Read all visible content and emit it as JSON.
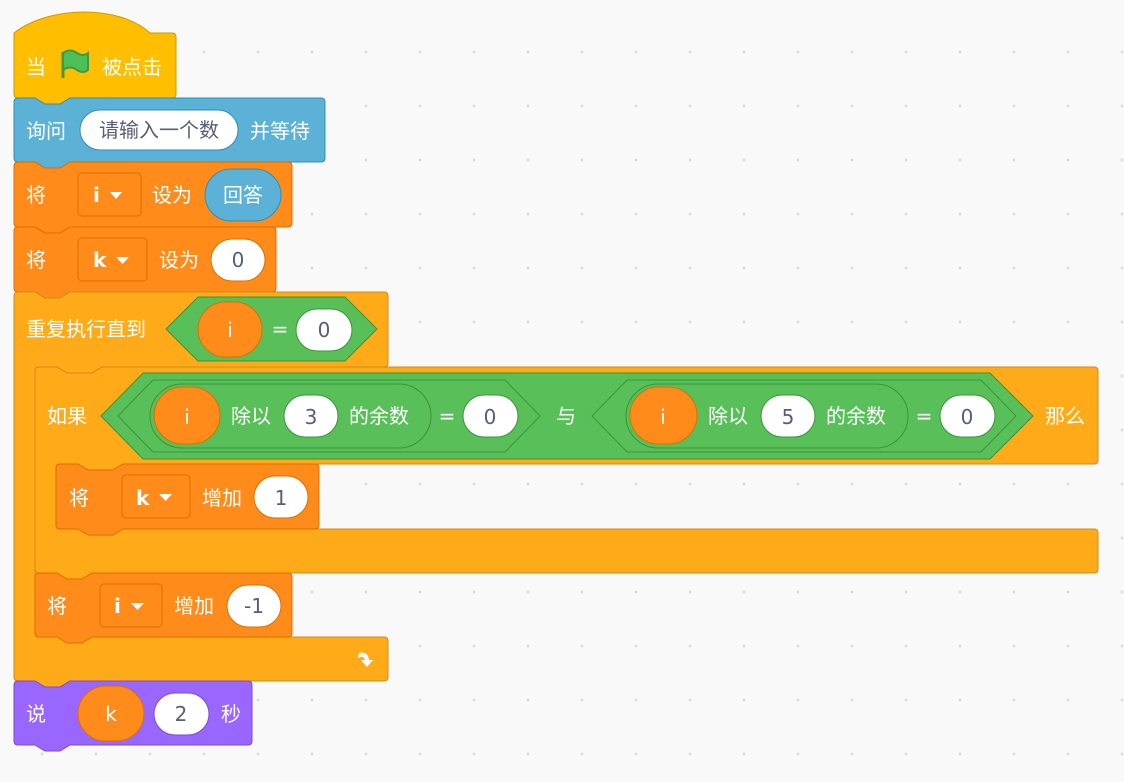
{
  "colors": {
    "events": "#ffbf00",
    "sensing": "#5cb1d6",
    "variables": "#ff8c1a",
    "control": "#ffab19",
    "operators": "#59c059",
    "looks": "#9966ff"
  },
  "script": {
    "hat": {
      "prefix": "当",
      "icon": "green-flag-icon",
      "suffix": "被点击"
    },
    "ask": {
      "label": "询问",
      "prompt": "请输入一个数",
      "suffix": "并等待"
    },
    "set_i": {
      "label": "将",
      "variable": "i",
      "mid": "设为",
      "reporter": "回答"
    },
    "set_k": {
      "label": "将",
      "variable": "k",
      "mid": "设为",
      "value": "0"
    },
    "repeat_until": {
      "label": "重复执行直到",
      "condition": {
        "left": "i",
        "op": "=",
        "right": "0"
      },
      "loop_icon": "loop-arrow-icon"
    },
    "if_block": {
      "label": "如果",
      "and_op": "与",
      "then": "那么",
      "left": {
        "var": "i",
        "mod": "除以",
        "divisor": "3",
        "rem": "的余数",
        "eq": "=",
        "value": "0"
      },
      "right": {
        "var": "i",
        "mod": "除以",
        "divisor": "5",
        "rem": "的余数",
        "eq": "=",
        "value": "0"
      }
    },
    "change_k": {
      "label": "将",
      "variable": "k",
      "mid": "增加",
      "value": "1"
    },
    "change_i": {
      "label": "将",
      "variable": "i",
      "mid": "增加",
      "value": "-1"
    },
    "say": {
      "label": "说",
      "reporter": "k",
      "secs": "2",
      "suffix": "秒"
    }
  }
}
